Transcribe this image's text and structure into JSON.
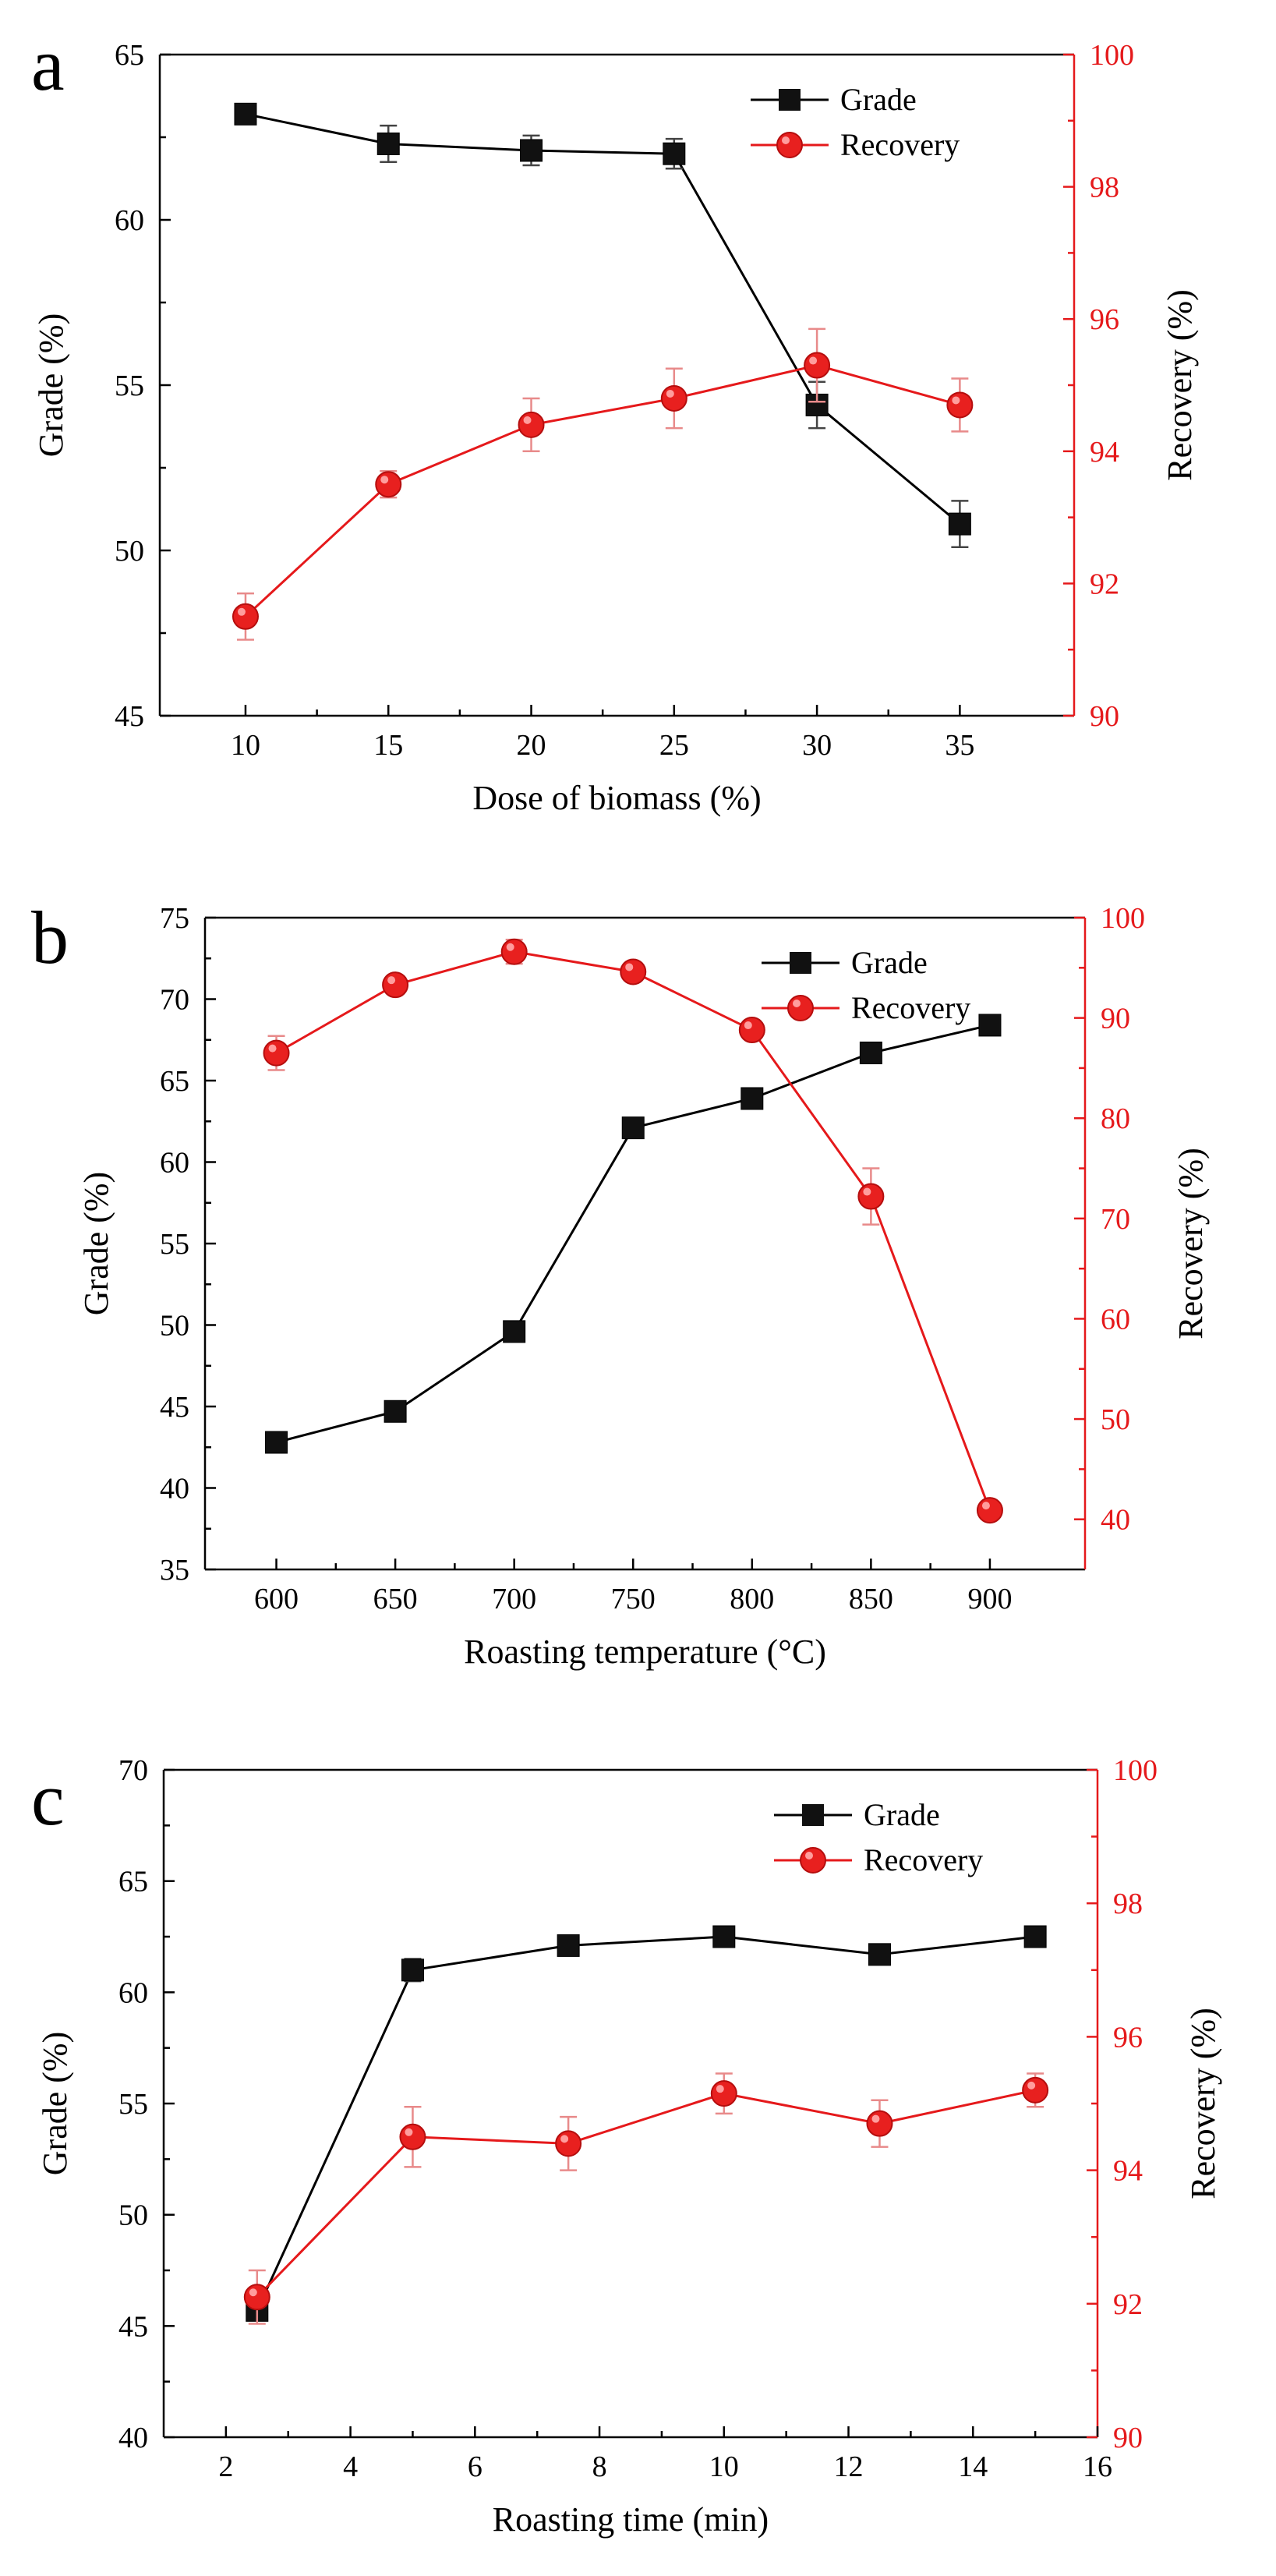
{
  "chart_data": [
    {
      "type": "line",
      "panel_label": "a",
      "xlabel": "Dose of biomass (%)",
      "ylabel": "Grade (%)",
      "y2label": "Recovery (%)",
      "xlim": [
        7,
        39
      ],
      "xticks": [
        10,
        15,
        20,
        25,
        30,
        35
      ],
      "ylim": [
        45,
        65
      ],
      "yticks": [
        45,
        50,
        55,
        60,
        65
      ],
      "y2lim": [
        90,
        100
      ],
      "y2ticks": [
        90,
        92,
        94,
        96,
        98,
        100
      ],
      "legend": "top-right",
      "x": [
        10,
        15,
        20,
        25,
        30,
        35
      ],
      "series": [
        {
          "name": "Grade",
          "axis": "left",
          "color": "#000000",
          "marker": "square",
          "values": [
            63.2,
            62.3,
            62.1,
            62.0,
            54.4,
            50.8
          ],
          "errors": [
            0.0,
            0.55,
            0.45,
            0.45,
            0.7,
            0.7
          ]
        },
        {
          "name": "Recovery",
          "axis": "right",
          "color": "#e5191b",
          "marker": "circle",
          "values": [
            91.5,
            93.5,
            94.4,
            94.8,
            95.3,
            94.7
          ],
          "errors": [
            0.35,
            0.2,
            0.4,
            0.45,
            0.55,
            0.4
          ]
        }
      ]
    },
    {
      "type": "line",
      "panel_label": "b",
      "xlabel": "Roasting temperature (°C)",
      "ylabel": "Grade (%)",
      "y2label": "Recovery (%)",
      "xlim": [
        570,
        940
      ],
      "xticks": [
        600,
        650,
        700,
        750,
        800,
        850,
        900
      ],
      "ylim": [
        35,
        75
      ],
      "yticks": [
        35,
        40,
        45,
        50,
        55,
        60,
        65,
        70,
        75
      ],
      "y2lim": [
        35,
        100
      ],
      "y2ticks": [
        40,
        50,
        60,
        70,
        80,
        90,
        100
      ],
      "legend": "top-right",
      "x": [
        600,
        650,
        700,
        750,
        800,
        850,
        900
      ],
      "series": [
        {
          "name": "Grade",
          "axis": "left",
          "color": "#000000",
          "marker": "square",
          "values": [
            42.8,
            44.7,
            49.6,
            62.1,
            63.9,
            66.7,
            68.4
          ],
          "errors": [
            0.5,
            0.0,
            0.0,
            0.0,
            0.0,
            0.0,
            0.6
          ]
        },
        {
          "name": "Recovery",
          "axis": "right",
          "color": "#e5191b",
          "marker": "circle",
          "values": [
            86.5,
            93.3,
            96.6,
            94.6,
            88.8,
            72.2,
            40.9
          ],
          "errors": [
            1.7,
            0.0,
            1.2,
            0.0,
            0.0,
            2.8,
            0.0
          ]
        }
      ]
    },
    {
      "type": "line",
      "panel_label": "c",
      "xlabel": "Roasting time (min)",
      "ylabel": "Grade (%)",
      "y2label": "Recovery (%)",
      "xlim": [
        1,
        16
      ],
      "xticks": [
        2,
        4,
        6,
        8,
        10,
        12,
        14,
        16
      ],
      "ylim": [
        40,
        70
      ],
      "yticks": [
        40,
        45,
        50,
        55,
        60,
        65,
        70
      ],
      "y2lim": [
        90,
        100
      ],
      "y2ticks": [
        90,
        92,
        94,
        96,
        98,
        100
      ],
      "legend": "top-right",
      "x": [
        2.5,
        5,
        7.5,
        10,
        12.5,
        15
      ],
      "series": [
        {
          "name": "Grade",
          "axis": "left",
          "color": "#000000",
          "marker": "square",
          "values": [
            45.7,
            61.0,
            62.1,
            62.5,
            61.7,
            62.5
          ],
          "errors": [
            0.0,
            0.5,
            0.3,
            0.3,
            0.3,
            0.2
          ]
        },
        {
          "name": "Recovery",
          "axis": "right",
          "color": "#e5191b",
          "marker": "circle",
          "values": [
            92.1,
            94.5,
            94.4,
            95.15,
            94.7,
            95.2
          ],
          "errors": [
            0.4,
            0.45,
            0.4,
            0.3,
            0.35,
            0.25
          ]
        }
      ]
    }
  ]
}
